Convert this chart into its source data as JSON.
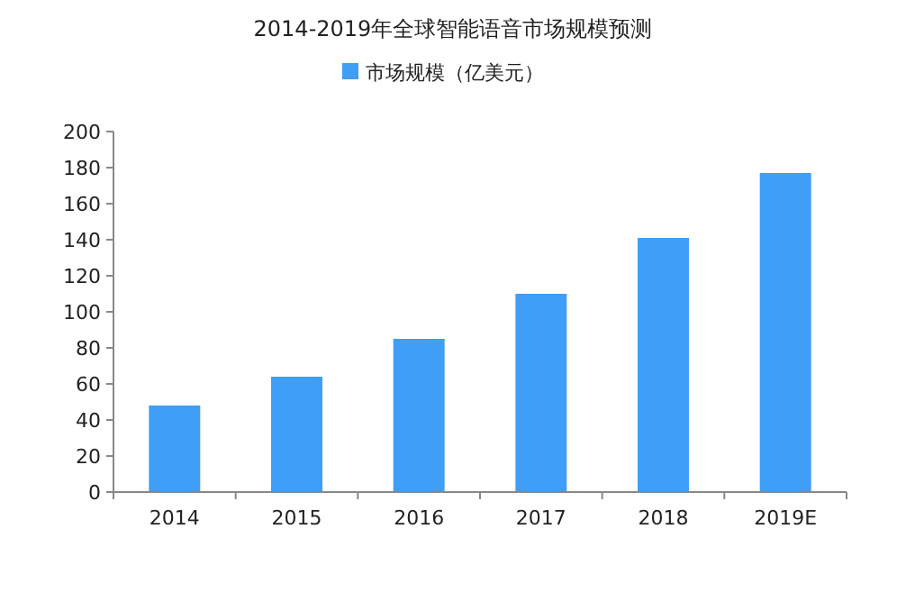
{
  "chart_data": {
    "type": "bar",
    "title": "2014-2019年全球智能语音市场规模预测",
    "categories": [
      "2014",
      "2015",
      "2016",
      "2017",
      "2018",
      "2019E"
    ],
    "series": [
      {
        "name": "市场规模（亿美元）",
        "color": "#3f9ef5",
        "values": [
          48,
          64,
          85,
          110,
          141,
          177
        ]
      }
    ],
    "ylim": [
      0,
      200
    ],
    "yticks": [
      0,
      20,
      40,
      60,
      80,
      100,
      120,
      140,
      160,
      180,
      200
    ],
    "grid": false,
    "legend": "top"
  }
}
